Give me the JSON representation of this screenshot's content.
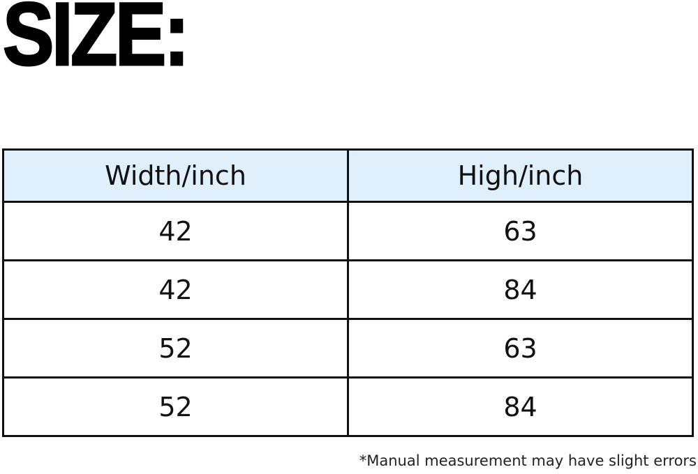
{
  "title": "SIZE:",
  "table": {
    "headers": [
      "Width/inch",
      "High/inch"
    ],
    "rows": [
      [
        "42",
        "63"
      ],
      [
        "42",
        "84"
      ],
      [
        "52",
        "63"
      ],
      [
        "52",
        "84"
      ]
    ]
  },
  "footnote": "*Manual measurement may have slight errors",
  "colors": {
    "header_bg": "#dff0fc",
    "border": "#111111"
  }
}
